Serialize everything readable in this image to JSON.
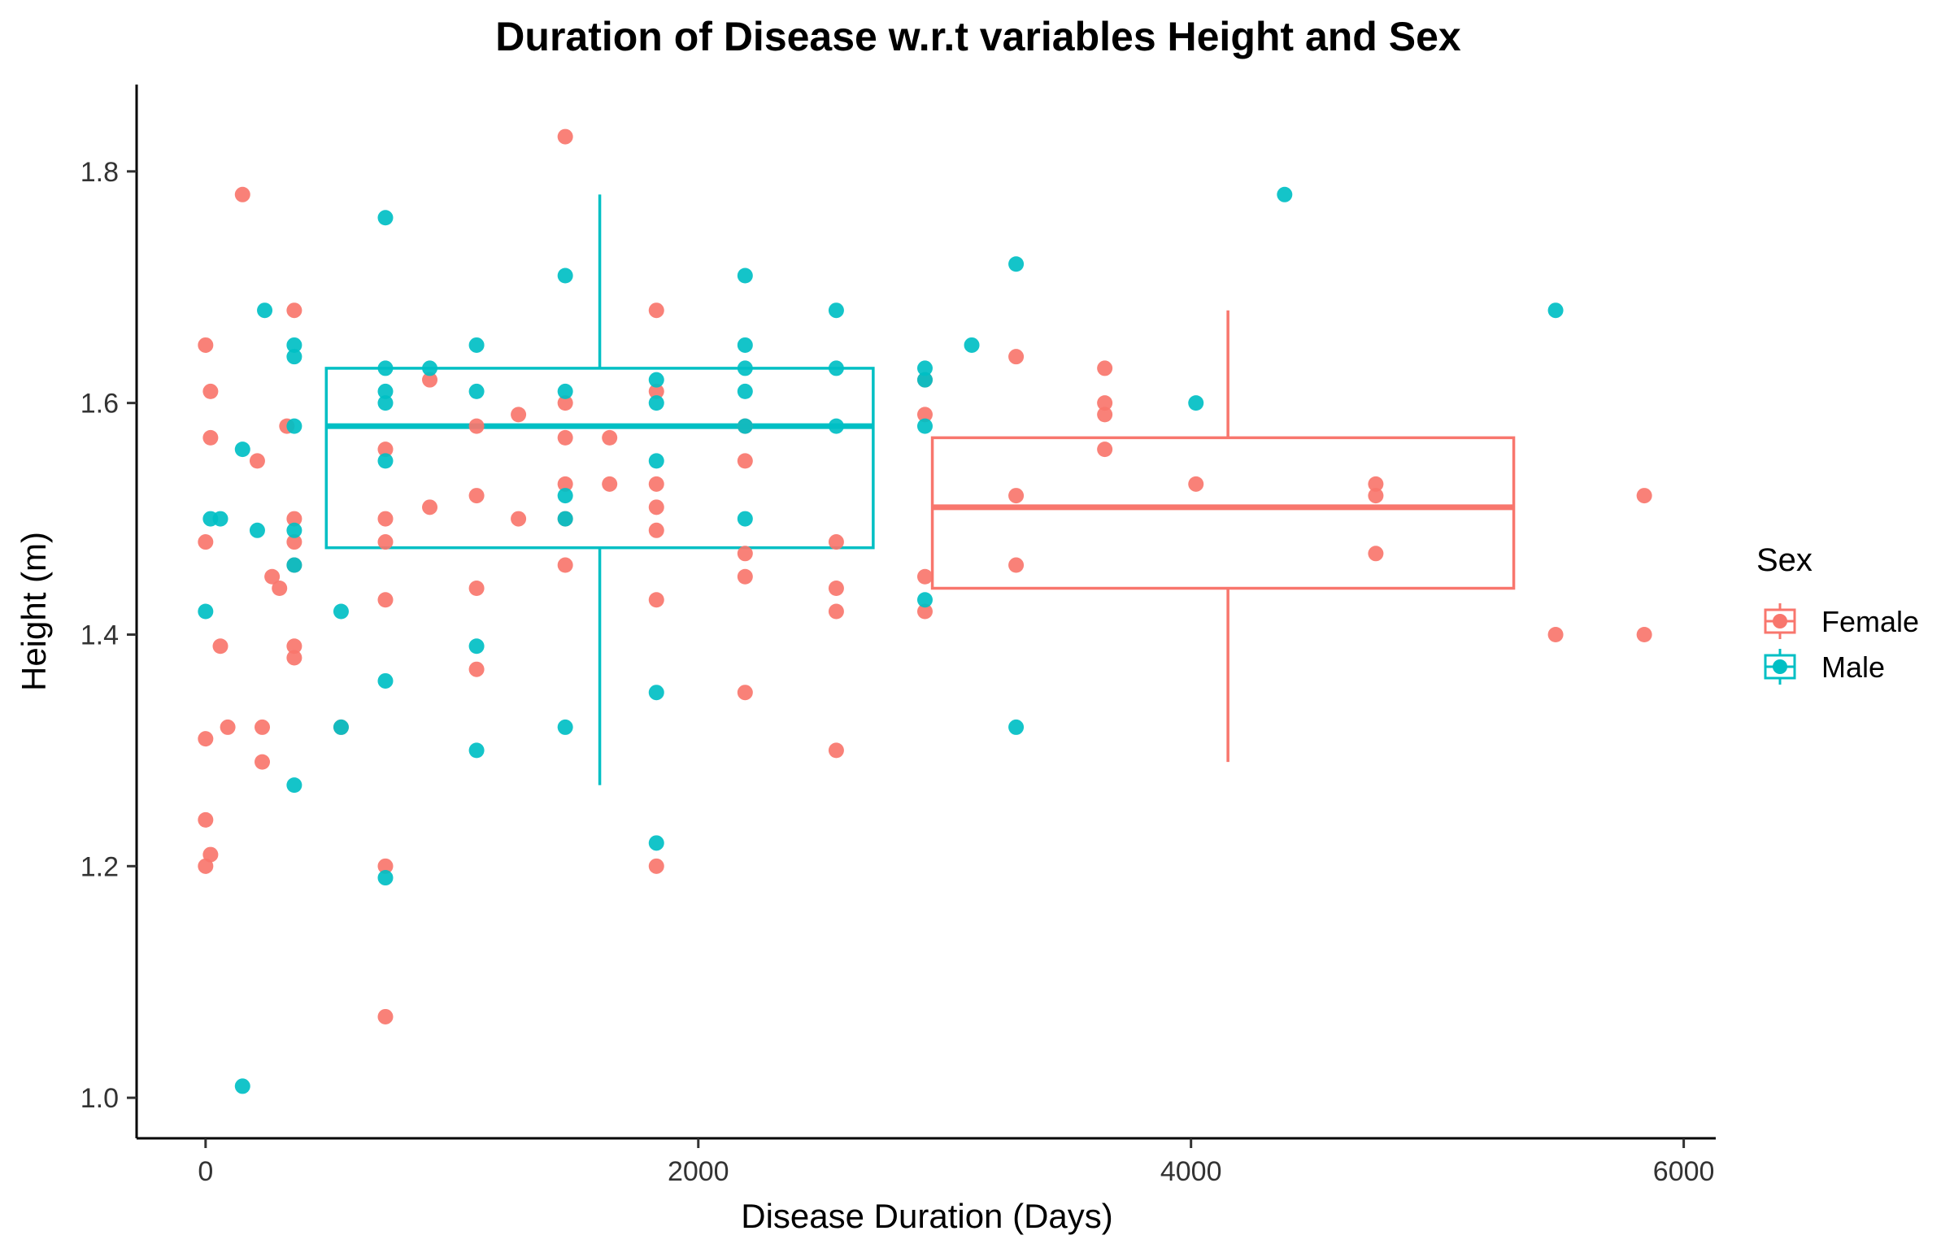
{
  "chart_data": {
    "type": "scatter",
    "title": "Duration of Disease w.r.t variables Height and Sex",
    "xlabel": "Disease Duration (Days)",
    "ylabel": "Height (m)",
    "xlim": [
      -280,
      6130
    ],
    "ylim": [
      0.965,
      1.875
    ],
    "x_ticks": [
      {
        "value": 0,
        "label": "0"
      },
      {
        "value": 2000,
        "label": "2000"
      },
      {
        "value": 4000,
        "label": "4000"
      },
      {
        "value": 6000,
        "label": "6000"
      }
    ],
    "y_ticks": [
      {
        "value": 1.0,
        "label": "1.0"
      },
      {
        "value": 1.2,
        "label": "1.2"
      },
      {
        "value": 1.4,
        "label": "1.4"
      },
      {
        "value": 1.6,
        "label": "1.6"
      },
      {
        "value": 1.8,
        "label": "1.8"
      }
    ],
    "grid": false,
    "legend": {
      "title": "Sex",
      "position": "right"
    },
    "series": [
      {
        "name": "Female",
        "color": "#F8766D",
        "box": {
          "x_min": 2950,
          "x_max": 5310,
          "q1": 1.44,
          "median": 1.51,
          "q3": 1.57,
          "whisker_x": 4150,
          "whisker_low": 1.29,
          "whisker_high": 1.68
        },
        "points": [
          [
            0,
            1.65
          ],
          [
            0,
            1.48
          ],
          [
            0,
            1.31
          ],
          [
            0,
            1.24
          ],
          [
            0,
            1.2
          ],
          [
            20,
            1.61
          ],
          [
            20,
            1.57
          ],
          [
            20,
            1.21
          ],
          [
            60,
            1.39
          ],
          [
            90,
            1.32
          ],
          [
            150,
            1.78
          ],
          [
            210,
            1.55
          ],
          [
            230,
            1.32
          ],
          [
            230,
            1.29
          ],
          [
            270,
            1.45
          ],
          [
            300,
            1.44
          ],
          [
            330,
            1.58
          ],
          [
            360,
            1.68
          ],
          [
            360,
            1.5
          ],
          [
            360,
            1.48
          ],
          [
            360,
            1.46
          ],
          [
            360,
            1.39
          ],
          [
            360,
            1.38
          ],
          [
            550,
            1.32
          ],
          [
            730,
            1.56
          ],
          [
            730,
            1.5
          ],
          [
            730,
            1.48
          ],
          [
            730,
            1.43
          ],
          [
            730,
            1.2
          ],
          [
            730,
            1.07
          ],
          [
            910,
            1.62
          ],
          [
            910,
            1.51
          ],
          [
            1100,
            1.58
          ],
          [
            1100,
            1.52
          ],
          [
            1100,
            1.44
          ],
          [
            1100,
            1.37
          ],
          [
            1270,
            1.59
          ],
          [
            1270,
            1.5
          ],
          [
            1460,
            1.83
          ],
          [
            1460,
            1.6
          ],
          [
            1460,
            1.57
          ],
          [
            1460,
            1.53
          ],
          [
            1460,
            1.5
          ],
          [
            1460,
            1.46
          ],
          [
            1640,
            1.57
          ],
          [
            1640,
            1.53
          ],
          [
            1830,
            1.68
          ],
          [
            1830,
            1.61
          ],
          [
            1830,
            1.53
          ],
          [
            1830,
            1.51
          ],
          [
            1830,
            1.49
          ],
          [
            1830,
            1.43
          ],
          [
            1830,
            1.2
          ],
          [
            2190,
            1.58
          ],
          [
            2190,
            1.55
          ],
          [
            2190,
            1.47
          ],
          [
            2190,
            1.45
          ],
          [
            2190,
            1.35
          ],
          [
            2560,
            1.48
          ],
          [
            2560,
            1.44
          ],
          [
            2560,
            1.42
          ],
          [
            2560,
            1.3
          ],
          [
            2920,
            1.62
          ],
          [
            2920,
            1.59
          ],
          [
            2920,
            1.45
          ],
          [
            2920,
            1.42
          ],
          [
            3290,
            1.64
          ],
          [
            3290,
            1.52
          ],
          [
            3290,
            1.46
          ],
          [
            3650,
            1.63
          ],
          [
            3650,
            1.6
          ],
          [
            3650,
            1.59
          ],
          [
            3650,
            1.56
          ],
          [
            4020,
            1.53
          ],
          [
            4750,
            1.53
          ],
          [
            4750,
            1.52
          ],
          [
            4750,
            1.47
          ],
          [
            5480,
            1.4
          ],
          [
            5840,
            1.52
          ],
          [
            5840,
            1.4
          ]
        ]
      },
      {
        "name": "Male",
        "color": "#00BFC4",
        "box": {
          "x_min": 490,
          "x_max": 2710,
          "q1": 1.475,
          "median": 1.58,
          "q3": 1.63,
          "whisker_x": 1600,
          "whisker_low": 1.27,
          "whisker_high": 1.78
        },
        "points": [
          [
            20,
            1.5
          ],
          [
            0,
            1.42
          ],
          [
            60,
            1.5
          ],
          [
            150,
            1.56
          ],
          [
            150,
            1.01
          ],
          [
            210,
            1.49
          ],
          [
            240,
            1.68
          ],
          [
            360,
            1.65
          ],
          [
            360,
            1.64
          ],
          [
            360,
            1.58
          ],
          [
            360,
            1.49
          ],
          [
            360,
            1.46
          ],
          [
            360,
            1.27
          ],
          [
            550,
            1.42
          ],
          [
            550,
            1.32
          ],
          [
            730,
            1.76
          ],
          [
            730,
            1.63
          ],
          [
            730,
            1.61
          ],
          [
            730,
            1.6
          ],
          [
            730,
            1.55
          ],
          [
            730,
            1.36
          ],
          [
            730,
            1.19
          ],
          [
            910,
            1.63
          ],
          [
            1100,
            1.65
          ],
          [
            1100,
            1.61
          ],
          [
            1100,
            1.39
          ],
          [
            1100,
            1.3
          ],
          [
            1460,
            1.71
          ],
          [
            1460,
            1.61
          ],
          [
            1460,
            1.52
          ],
          [
            1460,
            1.5
          ],
          [
            1460,
            1.32
          ],
          [
            1830,
            1.62
          ],
          [
            1830,
            1.6
          ],
          [
            1830,
            1.55
          ],
          [
            1830,
            1.35
          ],
          [
            1830,
            1.22
          ],
          [
            2190,
            1.71
          ],
          [
            2190,
            1.65
          ],
          [
            2190,
            1.63
          ],
          [
            2190,
            1.61
          ],
          [
            2190,
            1.58
          ],
          [
            2190,
            1.5
          ],
          [
            2560,
            1.68
          ],
          [
            2560,
            1.63
          ],
          [
            2560,
            1.58
          ],
          [
            2920,
            1.63
          ],
          [
            2920,
            1.62
          ],
          [
            2920,
            1.58
          ],
          [
            2920,
            1.43
          ],
          [
            3110,
            1.65
          ],
          [
            3290,
            1.72
          ],
          [
            3290,
            1.32
          ],
          [
            4020,
            1.6
          ],
          [
            4380,
            1.78
          ],
          [
            5480,
            1.68
          ]
        ]
      }
    ]
  }
}
